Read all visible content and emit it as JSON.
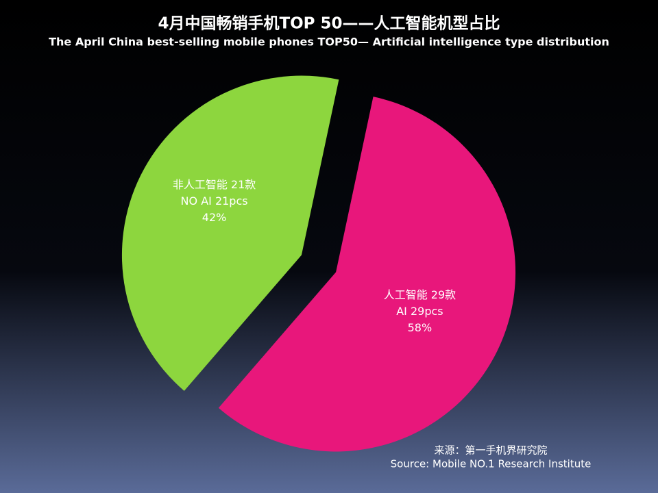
{
  "chart_data": {
    "type": "pie",
    "title": "4月中国畅销手机TOP 50——人工智能机型占比",
    "subtitle": "The April China best-selling mobile phones TOP50— Artificial intelligence type distribution",
    "categories": [
      "人工智能 29款",
      "非人工智能 21款"
    ],
    "categories_en": [
      "AI 29pcs",
      "NO AI 21pcs"
    ],
    "values": [
      58,
      42
    ],
    "value_labels": [
      "58%",
      "42%"
    ],
    "colors": [
      "#e8177b",
      "#8dd63e"
    ],
    "source": [
      "来源：第一手机界研究院",
      "Source: Mobile NO.1 Research Institute"
    ]
  }
}
